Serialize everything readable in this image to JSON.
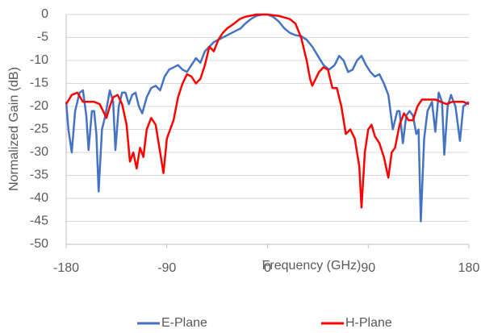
{
  "chart_data": {
    "type": "line",
    "xlabel": "Frequency (GHz)",
    "ylabel": "Normalized Gain (dB)",
    "xlim": [
      -180,
      180
    ],
    "xticks": [
      -180,
      -90,
      0,
      90,
      180
    ],
    "ylim": [
      -50,
      0
    ],
    "yticks": [
      0,
      -5,
      -10,
      -15,
      -20,
      -25,
      -30,
      -35,
      -40,
      -45,
      -50
    ],
    "grid": true,
    "legend": "bottom",
    "series": [
      {
        "name": "E-Plane",
        "color": "#4472c4",
        "x": [
          -180,
          -178,
          -175,
          -172,
          -168,
          -165,
          -162,
          -160,
          -157,
          -155,
          -153,
          -151,
          -148,
          -145,
          -141,
          -138,
          -136,
          -133,
          -130,
          -127,
          -124,
          -121,
          -118,
          -115,
          -112,
          -108,
          -104,
          -100,
          -96,
          -92,
          -88,
          -84,
          -80,
          -76,
          -72,
          -68,
          -64,
          -60,
          -56,
          -52,
          -48,
          -44,
          -40,
          -36,
          -32,
          -28,
          -24,
          -20,
          -15,
          -10,
          -5,
          0,
          5,
          10,
          15,
          20,
          25,
          30,
          35,
          40,
          45,
          50,
          55,
          60,
          64,
          68,
          72,
          76,
          80,
          84,
          88,
          92,
          96,
          100,
          104,
          108,
          112,
          116,
          118,
          121,
          124,
          127,
          130,
          133,
          135,
          137,
          140,
          143,
          147,
          150,
          153,
          156,
          158,
          161,
          164,
          168,
          172,
          175,
          180
        ],
        "values": [
          -19,
          -25,
          -30,
          -21,
          -17,
          -16.5,
          -22,
          -29.5,
          -21,
          -21,
          -26,
          -38.5,
          -25,
          -22,
          -16.5,
          -19,
          -29.5,
          -20,
          -17,
          -17,
          -19.5,
          -17.5,
          -17,
          -20,
          -21.5,
          -18,
          -16,
          -15.5,
          -16.5,
          -13.5,
          -12,
          -11.5,
          -11,
          -12,
          -12.5,
          -11,
          -9.5,
          -10.5,
          -8,
          -7,
          -6,
          -5.5,
          -5,
          -4.5,
          -4,
          -3.5,
          -3,
          -2,
          -1,
          -0.3,
          0,
          0,
          -0.5,
          -1.5,
          -3,
          -4,
          -4.5,
          -4.7,
          -5.5,
          -7,
          -9,
          -11,
          -12,
          -11,
          -9,
          -10,
          -12.5,
          -12,
          -10,
          -9,
          -11,
          -12.5,
          -13.5,
          -13,
          -15,
          -17.5,
          -25,
          -21,
          -21,
          -28,
          -22,
          -21,
          -22,
          -26,
          -25,
          -45,
          -27,
          -21,
          -19,
          -25.5,
          -17,
          -19,
          -30.5,
          -20,
          -17.5,
          -20,
          -27.5,
          -20,
          -19
        ]
      },
      {
        "name": "H-Plane",
        "color": "#ff0000",
        "x": [
          -180,
          -175,
          -170,
          -165,
          -160,
          -155,
          -150,
          -147,
          -144,
          -141,
          -138,
          -134,
          -130,
          -126,
          -123,
          -120,
          -117,
          -114,
          -111,
          -108,
          -104,
          -100,
          -96,
          -93,
          -90,
          -87,
          -84,
          -80,
          -76,
          -72,
          -68,
          -64,
          -60,
          -56,
          -52,
          -48,
          -44,
          -40,
          -36,
          -30,
          -25,
          -20,
          -10,
          0,
          10,
          20,
          25,
          30,
          35,
          38,
          40,
          43,
          46,
          50,
          54,
          58,
          62,
          66,
          70,
          74,
          78,
          82,
          84,
          87,
          90,
          93,
          96,
          100,
          104,
          108,
          111,
          114,
          118,
          122,
          126,
          130,
          134,
          138,
          145,
          150,
          155,
          160,
          165,
          170,
          175,
          180
        ],
        "values": [
          -19.5,
          -17.5,
          -17,
          -19,
          -19,
          -19,
          -19.5,
          -21,
          -22.5,
          -20,
          -18,
          -17.5,
          -19.5,
          -24,
          -32,
          -30,
          -33.5,
          -29,
          -31,
          -25,
          -22.5,
          -24,
          -30,
          -34.5,
          -27,
          -25,
          -23,
          -18,
          -15,
          -13,
          -13.5,
          -15,
          -14,
          -11,
          -7,
          -8,
          -5.5,
          -4,
          -3,
          -2,
          -1,
          -0.5,
          0,
          0,
          -0.3,
          -1,
          -2,
          -5,
          -10,
          -14,
          -15.5,
          -14,
          -12.5,
          -11.5,
          -12,
          -16,
          -16,
          -20,
          -26,
          -25,
          -27,
          -33,
          -42,
          -30,
          -25,
          -24,
          -26.5,
          -28,
          -31,
          -35.5,
          -30,
          -29,
          -24,
          -21.5,
          -23,
          -23,
          -20,
          -18.5,
          -18.5,
          -18.5,
          -19,
          -19.5,
          -19,
          -19,
          -19,
          -19.5
        ]
      }
    ]
  }
}
